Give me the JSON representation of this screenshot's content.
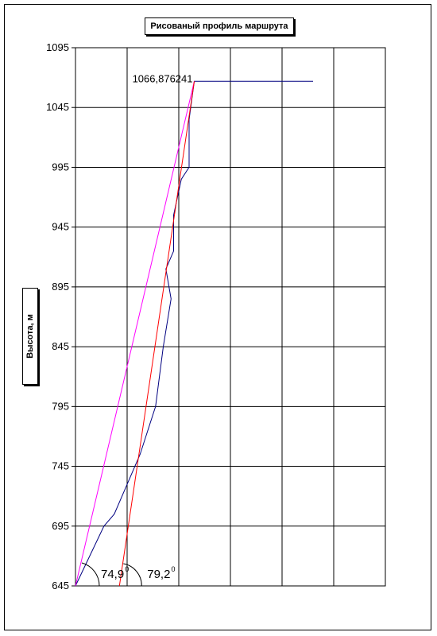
{
  "chart_data": {
    "type": "line",
    "title": "Рисованый профиль маршрута",
    "ylabel": "Высота, м",
    "xlabel": "",
    "ylim": [
      645,
      1095
    ],
    "xlim": [
      0,
      6
    ],
    "yticks": [
      "645",
      "695",
      "745",
      "795",
      "845",
      "895",
      "945",
      "995",
      "1045",
      "1095"
    ],
    "grid": true,
    "annotation": {
      "text": "1066,876241",
      "x": 2.3,
      "y": 1066.876241
    },
    "series": [
      {
        "name": "",
        "color": "#000080",
        "x": [
          0,
          0.55,
          0.75,
          1.25,
          1.55,
          1.7,
          1.85,
          1.75,
          1.9,
          1.9,
          2.05,
          2.2,
          2.2,
          2.3,
          4.6
        ],
        "y": [
          645,
          695,
          705,
          755,
          795,
          845,
          885,
          910,
          925,
          955,
          985,
          995,
          1035,
          1066.88,
          1066.88
        ]
      },
      {
        "name": "",
        "color": "#ff00ff",
        "x": [
          0,
          2.3
        ],
        "y": [
          645,
          1066.88
        ]
      },
      {
        "name": "",
        "color": "#ff0000",
        "x": [
          0.85,
          2.3
        ],
        "y": [
          645,
          1066.88
        ]
      }
    ],
    "angles": [
      {
        "label": "74,9",
        "degree": "0"
      },
      {
        "label": "79,2",
        "degree": "0"
      }
    ]
  }
}
